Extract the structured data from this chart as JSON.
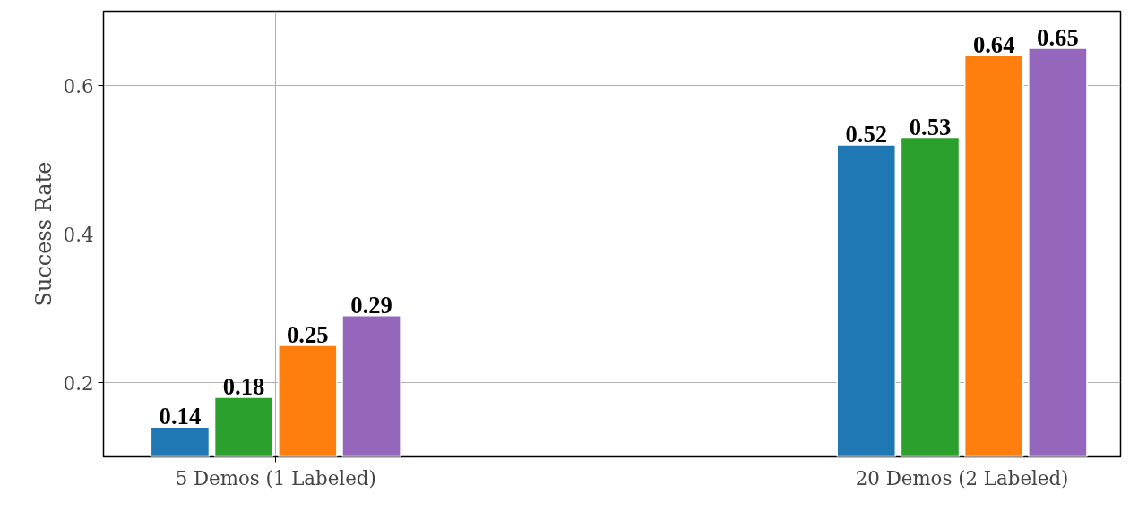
{
  "chart_data": {
    "type": "bar",
    "ylabel": "Success Rate",
    "categories": [
      "5 Demos (1 Labeled)",
      "20 Demos (2 Labeled)"
    ],
    "series": [
      {
        "color": "#1f77b4",
        "values": [
          0.14,
          0.52
        ]
      },
      {
        "color": "#2ca02c",
        "values": [
          0.18,
          0.53
        ]
      },
      {
        "color": "#ff7f0e",
        "values": [
          0.25,
          0.64
        ]
      },
      {
        "color": "#9467bd",
        "values": [
          0.29,
          0.65
        ]
      }
    ],
    "ylim": [
      0.1,
      0.7
    ],
    "yticks": [
      0.2,
      0.4,
      0.6
    ],
    "grid": true,
    "data_labels": true
  }
}
